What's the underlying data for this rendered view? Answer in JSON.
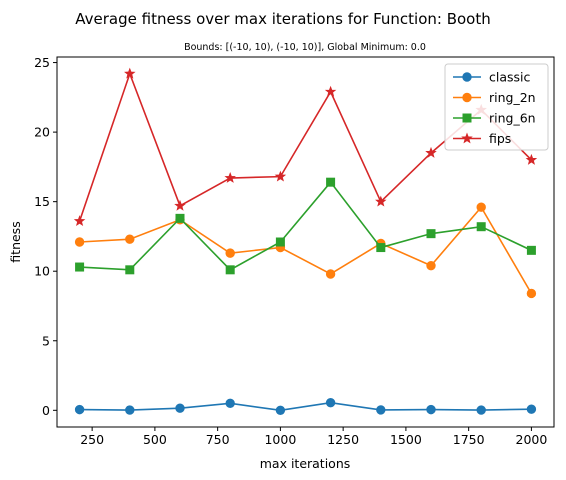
{
  "chart_data": {
    "type": "line",
    "title": "Average fitness over max iterations for Function: Booth",
    "subtitle": "Bounds: [(-10, 10), (-10, 10)], Global Minimum: 0.0",
    "xlabel": "max iterations",
    "ylabel": "fitness",
    "xlim": [
      110,
      2090
    ],
    "ylim": [
      -1.2,
      25.4
    ],
    "x_ticks": [
      250,
      500,
      750,
      1000,
      1250,
      1500,
      1750,
      2000
    ],
    "y_ticks": [
      0,
      5,
      10,
      15,
      20,
      25
    ],
    "grid": false,
    "legend_position": "top-right",
    "x": [
      200,
      400,
      600,
      800,
      1000,
      1200,
      1400,
      1600,
      1800,
      2000
    ],
    "series": [
      {
        "name": "classic",
        "color": "#1f77b4",
        "marker": "circle",
        "values": [
          0.05,
          0.02,
          0.15,
          0.5,
          0.0,
          0.55,
          0.03,
          0.05,
          0.02,
          0.08
        ]
      },
      {
        "name": "ring_2n",
        "color": "#ff7f0e",
        "marker": "circle",
        "values": [
          12.1,
          12.3,
          13.7,
          11.3,
          11.7,
          9.8,
          12.0,
          10.4,
          14.6,
          8.4
        ]
      },
      {
        "name": "ring_6n",
        "color": "#2ca02c",
        "marker": "square",
        "values": [
          10.3,
          10.1,
          13.8,
          10.1,
          12.1,
          16.4,
          11.7,
          12.7,
          13.2,
          11.5
        ]
      },
      {
        "name": "fips",
        "color": "#d62728",
        "marker": "star",
        "values": [
          13.6,
          24.2,
          14.7,
          16.7,
          16.8,
          22.9,
          15.0,
          18.5,
          21.6,
          18.0
        ]
      }
    ]
  }
}
